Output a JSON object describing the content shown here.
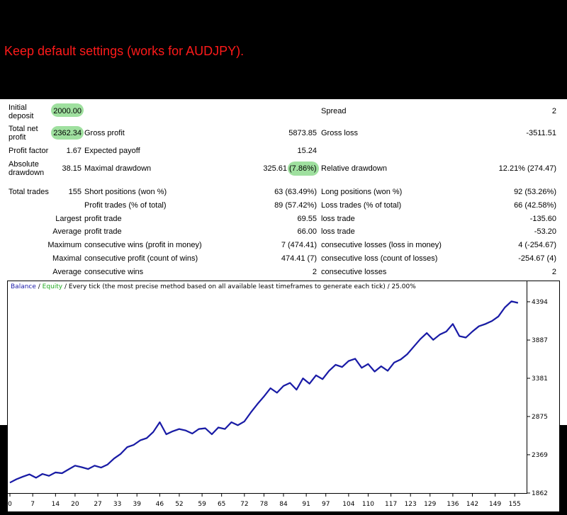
{
  "caption": "Keep default settings (works for AUDJPY).",
  "report": {
    "initial_deposit_label": "Initial deposit",
    "initial_deposit_value": "2000.00",
    "spread_label": "Spread",
    "spread_value": "2",
    "total_net_profit_label": "Total net profit",
    "total_net_profit_value": "2362.34",
    "gross_profit_label": "Gross profit",
    "gross_profit_value": "5873.85",
    "gross_loss_label": "Gross loss",
    "gross_loss_value": "-3511.51",
    "profit_factor_label": "Profit factor",
    "profit_factor_value": "1.67",
    "expected_payoff_label": "Expected payoff",
    "expected_payoff_value": "15.24",
    "absolute_drawdown_label": "Absolute drawdown",
    "absolute_drawdown_value": "38.15",
    "maximal_drawdown_label": "Maximal drawdown",
    "maximal_drawdown_value": "325.61",
    "maximal_drawdown_pct": "(7.86%)",
    "relative_drawdown_label": "Relative drawdown",
    "relative_drawdown_value": "12.21% (274.47)",
    "total_trades_label": "Total trades",
    "total_trades_value": "155",
    "short_positions_label": "Short positions (won %)",
    "short_positions_value": "63 (63.49%)",
    "long_positions_label": "Long positions (won %)",
    "long_positions_value": "92 (53.26%)",
    "profit_trades_label": "Profit trades (% of total)",
    "profit_trades_value": "89 (57.42%)",
    "loss_trades_label": "Loss trades (% of total)",
    "loss_trades_value": "66 (42.58%)",
    "largest_label": "Largest",
    "largest_profit_label": "profit trade",
    "largest_profit_value": "69.55",
    "largest_loss_label": "loss trade",
    "largest_loss_value": "-135.60",
    "average_label": "Average",
    "average_profit_label": "profit trade",
    "average_profit_value": "66.00",
    "average_loss_label": "loss trade",
    "average_loss_value": "-53.20",
    "maximum_label": "Maximum",
    "max_cons_wins_label": "consecutive wins (profit in money)",
    "max_cons_wins_value": "7 (474.41)",
    "max_cons_losses_label": "consecutive losses (loss in money)",
    "max_cons_losses_value": "4 (-254.67)",
    "maximal_label": "Maximal",
    "maximal_cons_profit_label": "consecutive profit (count of wins)",
    "maximal_cons_profit_value": "474.41 (7)",
    "maximal_cons_loss_label": "consecutive loss (count of losses)",
    "maximal_cons_loss_value": "-254.67 (4)",
    "average2_label": "Average",
    "avg_cons_wins_label": "consecutive wins",
    "avg_cons_wins_value": "2",
    "avg_cons_losses_label": "consecutive losses",
    "avg_cons_losses_value": "2"
  },
  "colors": {
    "caption": "#ff1a1a",
    "highlight": "#9fe09f",
    "balance": "#1a1aa8",
    "equity": "#22aa22"
  },
  "chart_data": {
    "type": "line",
    "legend": {
      "balance": "Balance",
      "separator": " / ",
      "equity": "Equity",
      "description": " / Every tick (the most precise method based on all available least timeframes to generate each tick) / 25.00%"
    },
    "xticks": [
      0,
      7,
      14,
      20,
      27,
      33,
      39,
      46,
      52,
      59,
      65,
      72,
      78,
      84,
      91,
      97,
      104,
      110,
      117,
      123,
      129,
      136,
      142,
      149,
      155
    ],
    "yticks": [
      1862,
      2369,
      2875,
      3381,
      3887,
      4394
    ],
    "ylim": [
      1862,
      4600
    ],
    "xlim": [
      0,
      158
    ],
    "series": [
      {
        "name": "Balance",
        "x": [
          0,
          2,
          4,
          6,
          8,
          10,
          12,
          14,
          16,
          18,
          20,
          22,
          24,
          26,
          28,
          30,
          32,
          34,
          36,
          38,
          40,
          42,
          44,
          46,
          48,
          50,
          52,
          54,
          56,
          58,
          60,
          62,
          64,
          66,
          68,
          70,
          72,
          74,
          76,
          78,
          80,
          82,
          84,
          86,
          88,
          90,
          92,
          94,
          96,
          98,
          100,
          102,
          104,
          106,
          108,
          110,
          112,
          114,
          116,
          118,
          120,
          122,
          124,
          126,
          128,
          130,
          132,
          134,
          136,
          138,
          140,
          142,
          144,
          146,
          148,
          150,
          152,
          154,
          156
        ],
        "y": [
          2000,
          2045,
          2080,
          2110,
          2065,
          2115,
          2090,
          2135,
          2125,
          2175,
          2225,
          2205,
          2180,
          2225,
          2200,
          2240,
          2320,
          2380,
          2470,
          2500,
          2560,
          2590,
          2670,
          2800,
          2640,
          2680,
          2710,
          2690,
          2650,
          2710,
          2720,
          2640,
          2730,
          2710,
          2800,
          2760,
          2810,
          2930,
          3040,
          3140,
          3250,
          3190,
          3280,
          3320,
          3230,
          3380,
          3310,
          3420,
          3370,
          3480,
          3560,
          3530,
          3610,
          3640,
          3520,
          3570,
          3470,
          3540,
          3480,
          3590,
          3630,
          3700,
          3800,
          3900,
          3980,
          3890,
          3960,
          4000,
          4100,
          3940,
          3920,
          4000,
          4070,
          4100,
          4140,
          4200,
          4320,
          4400,
          4380
        ]
      },
      {
        "name": "Equity",
        "x": [
          0,
          2,
          4,
          6,
          8,
          10,
          12,
          14,
          16,
          18,
          20,
          22,
          24,
          26,
          28,
          30,
          32,
          34,
          36,
          38,
          40,
          42,
          44,
          46,
          48,
          50,
          52,
          54,
          56,
          58,
          60,
          62,
          64,
          66,
          68,
          70,
          72,
          74,
          76,
          78,
          80,
          82,
          84,
          86,
          88,
          90,
          92,
          94,
          96,
          98,
          100,
          102,
          104,
          106,
          108,
          110,
          112,
          114,
          116,
          118,
          120,
          122,
          124,
          126,
          128,
          130,
          132,
          134,
          136,
          138,
          140,
          142,
          144,
          146,
          148,
          150,
          152,
          154,
          156
        ],
        "y": [
          2000,
          2040,
          2075,
          2105,
          2060,
          2110,
          2085,
          2130,
          2120,
          2170,
          2220,
          2200,
          2175,
          2220,
          2195,
          2235,
          2315,
          2375,
          2465,
          2495,
          2555,
          2585,
          2665,
          2795,
          2635,
          2675,
          2705,
          2685,
          2645,
          2705,
          2715,
          2635,
          2725,
          2705,
          2795,
          2755,
          2805,
          2925,
          3035,
          3135,
          3245,
          3185,
          3275,
          3315,
          3225,
          3375,
          3305,
          3415,
          3365,
          3475,
          3555,
          3525,
          3605,
          3635,
          3515,
          3565,
          3465,
          3535,
          3475,
          3585,
          3625,
          3695,
          3795,
          3895,
          3975,
          3885,
          3955,
          3995,
          4095,
          3935,
          3915,
          3995,
          4065,
          4095,
          4135,
          4195,
          4315,
          4395,
          4375
        ]
      }
    ]
  }
}
